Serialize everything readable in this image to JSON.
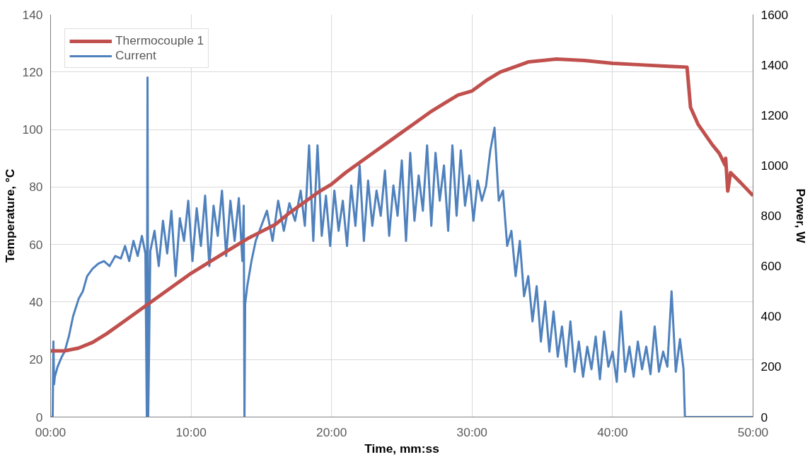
{
  "chart_data": {
    "type": "line",
    "xlabel": "Time, mm:ss",
    "ylabel": "Temperature, °C",
    "y2label": "Power, W",
    "xlim": [
      0,
      50
    ],
    "xticks": [
      {
        "value": 0,
        "label": "00:00"
      },
      {
        "value": 10,
        "label": "10:00"
      },
      {
        "value": 20,
        "label": "20:00"
      },
      {
        "value": 30,
        "label": "30:00"
      },
      {
        "value": 40,
        "label": "40:00"
      },
      {
        "value": 50,
        "label": "50:00"
      }
    ],
    "ylim": [
      0,
      140
    ],
    "yticks": [
      0,
      20,
      40,
      60,
      80,
      100,
      120,
      140
    ],
    "y2lim": [
      0,
      1600
    ],
    "y2ticks": [
      0,
      200,
      400,
      600,
      800,
      1000,
      1200,
      1400,
      1600
    ],
    "grid": true,
    "legend": "top left",
    "marker": "none",
    "line_style": "solid",
    "series": [
      {
        "name": "Thermocouple 1",
        "color": "#c0504d",
        "x": [
          0,
          1,
          2,
          3,
          4,
          5,
          6,
          7,
          8,
          9,
          10,
          11,
          12,
          13,
          14,
          15,
          16,
          17,
          18,
          19,
          20,
          21,
          22,
          23,
          24,
          25,
          26,
          27,
          28,
          29,
          30,
          31,
          32,
          32.6,
          34,
          36,
          38,
          40,
          42,
          44,
          45.3,
          45.55,
          46.1,
          47.1,
          47.6,
          48.0,
          48.05,
          48.2,
          48.4,
          49.1,
          50
        ],
        "values": [
          23,
          23,
          24,
          26,
          29,
          32.5,
          36,
          39.5,
          43,
          46.5,
          50,
          53,
          56,
          59,
          62,
          64.5,
          67,
          71,
          74.5,
          78,
          81,
          85,
          88.5,
          92,
          95.5,
          99,
          102.5,
          106,
          109,
          112,
          113.4,
          117,
          120,
          121,
          123.5,
          124.5,
          124,
          123,
          122.5,
          122,
          121.7,
          107.7,
          101.7,
          94.7,
          91.7,
          87.7,
          90,
          78.6,
          85,
          81.6,
          77
        ]
      },
      {
        "name": "Current",
        "color": "#4f81bd",
        "axis": "y2",
        "x": [
          0,
          0.15,
          0.2,
          0.25,
          0.3,
          0.5,
          0.8,
          1,
          1.3,
          1.6,
          2,
          2.3,
          2.6,
          3,
          3.4,
          3.8,
          4.2,
          4.6,
          5,
          5.3,
          5.6,
          5.9,
          6.2,
          6.5,
          6.75,
          6.85,
          6.9,
          6.95,
          7.1,
          7.4,
          7.7,
          8,
          8.3,
          8.6,
          8.9,
          9.2,
          9.5,
          9.8,
          10.1,
          10.4,
          10.7,
          11,
          11.3,
          11.6,
          11.9,
          12.2,
          12.5,
          12.8,
          13.1,
          13.4,
          13.65,
          13.75,
          13.8,
          13.85,
          14,
          14.3,
          14.6,
          15,
          15.4,
          15.8,
          16.2,
          16.6,
          17,
          17.4,
          17.8,
          18.1,
          18.4,
          18.7,
          19,
          19.3,
          19.6,
          19.9,
          20.2,
          20.5,
          20.8,
          21.1,
          21.4,
          21.7,
          22,
          22.3,
          22.6,
          22.9,
          23.2,
          23.5,
          23.8,
          24.1,
          24.4,
          24.7,
          25,
          25.3,
          25.6,
          25.9,
          26.2,
          26.5,
          26.8,
          27.1,
          27.4,
          27.7,
          28,
          28.3,
          28.6,
          28.9,
          29.2,
          29.5,
          29.8,
          30.1,
          30.4,
          30.7,
          31,
          31.3,
          31.6,
          31.9,
          32.2,
          32.5,
          32.8,
          33.1,
          33.4,
          33.7,
          34,
          34.3,
          34.6,
          34.9,
          35.2,
          35.5,
          35.8,
          36.1,
          36.4,
          36.7,
          37,
          37.3,
          37.6,
          37.9,
          38.2,
          38.5,
          38.8,
          39.1,
          39.4,
          39.7,
          40,
          40.3,
          40.6,
          40.9,
          41.2,
          41.5,
          41.8,
          42.1,
          42.4,
          42.7,
          43,
          43.3,
          43.6,
          43.9,
          44.2,
          44.5,
          44.8,
          45.05,
          45.15,
          50
        ],
        "values": [
          0,
          0,
          300,
          130,
          160,
          200,
          240,
          260,
          320,
          400,
          470,
          500,
          560,
          590,
          610,
          620,
          600,
          640,
          630,
          680,
          620,
          700,
          640,
          720,
          650,
          0,
          1350,
          0,
          660,
          740,
          600,
          780,
          650,
          820,
          560,
          790,
          700,
          860,
          620,
          830,
          680,
          880,
          600,
          840,
          720,
          900,
          640,
          860,
          700,
          870,
          620,
          840,
          0,
          450,
          520,
          620,
          700,
          760,
          820,
          700,
          860,
          740,
          850,
          780,
          900,
          760,
          1080,
          700,
          1080,
          720,
          880,
          680,
          900,
          740,
          860,
          680,
          920,
          760,
          1000,
          700,
          940,
          760,
          900,
          800,
          980,
          720,
          920,
          800,
          1020,
          700,
          1050,
          780,
          960,
          820,
          1080,
          760,
          1050,
          860,
          1000,
          740,
          1080,
          800,
          1060,
          840,
          960,
          780,
          940,
          860,
          920,
          1060,
          1150,
          860,
          900,
          680,
          740,
          560,
          700,
          480,
          560,
          380,
          520,
          300,
          460,
          260,
          420,
          240,
          360,
          200,
          380,
          180,
          300,
          160,
          280,
          190,
          320,
          150,
          340,
          200,
          260,
          140,
          420,
          180,
          280,
          160,
          300,
          190,
          280,
          170,
          360,
          180,
          260,
          200,
          500,
          180,
          310,
          190,
          0,
          0
        ]
      }
    ]
  }
}
